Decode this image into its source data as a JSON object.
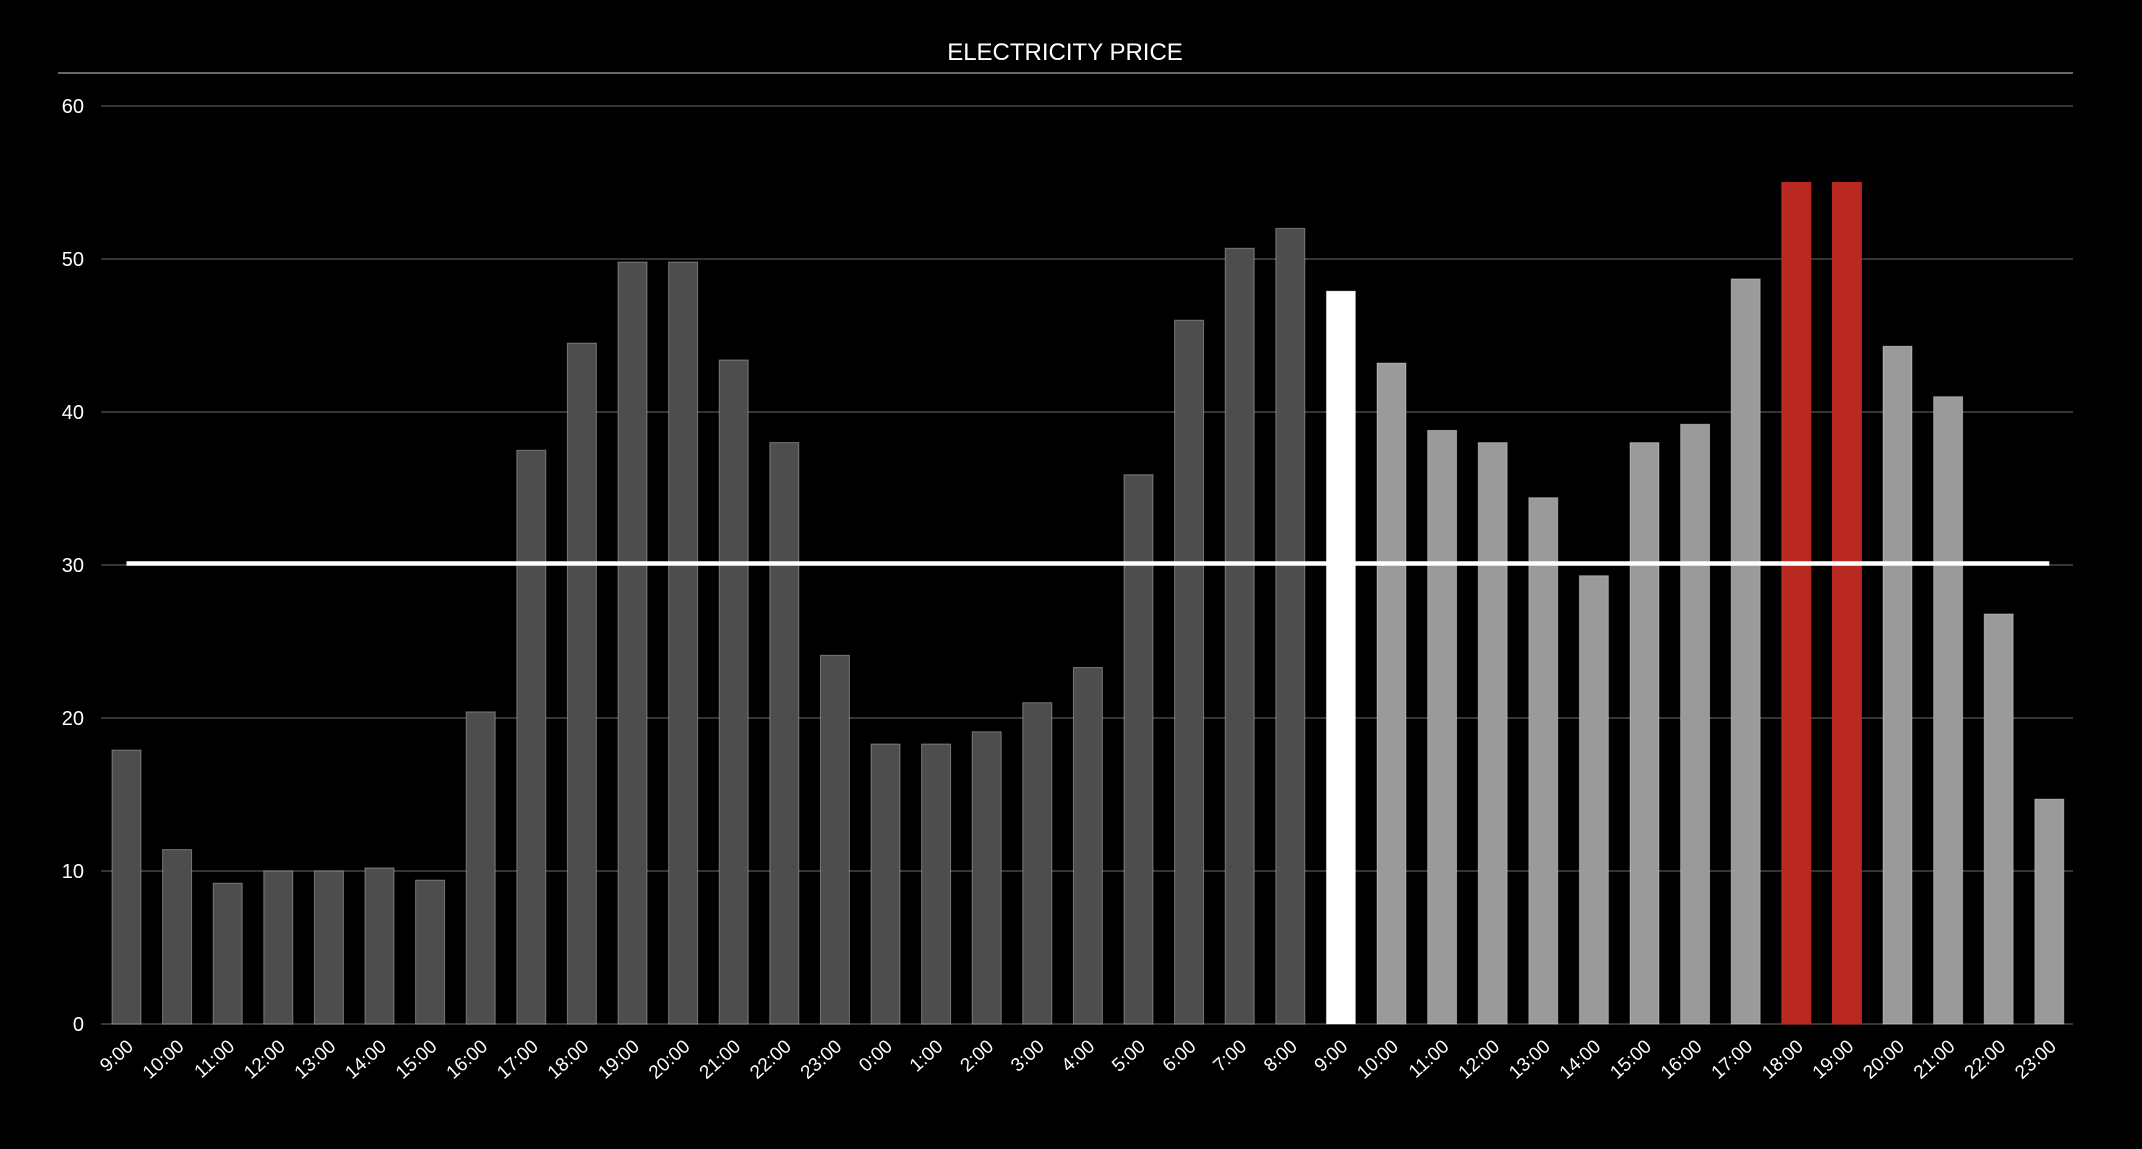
{
  "chart_data": {
    "type": "bar",
    "title": "ELECTRICITY PRICE",
    "xlabel": "",
    "ylabel": "",
    "ylim": [
      0,
      60
    ],
    "yticks": [
      0,
      10,
      20,
      30,
      40,
      50,
      60
    ],
    "grid": true,
    "reference_line": 30.1,
    "categories": [
      "9:00",
      "10:00",
      "11:00",
      "12:00",
      "13:00",
      "14:00",
      "15:00",
      "16:00",
      "17:00",
      "18:00",
      "19:00",
      "20:00",
      "21:00",
      "22:00",
      "23:00",
      "0:00",
      "1:00",
      "2:00",
      "3:00",
      "4:00",
      "5:00",
      "6:00",
      "7:00",
      "8:00",
      "9:00",
      "10:00",
      "11:00",
      "12:00",
      "13:00",
      "14:00",
      "15:00",
      "16:00",
      "17:00",
      "18:00",
      "19:00",
      "20:00",
      "21:00",
      "22:00",
      "23:00"
    ],
    "values": [
      17.9,
      11.4,
      9.2,
      10.0,
      10.0,
      10.2,
      9.4,
      20.4,
      37.5,
      44.5,
      49.8,
      49.8,
      43.4,
      38.0,
      24.1,
      18.3,
      18.3,
      19.1,
      21.0,
      23.3,
      35.9,
      46.0,
      50.7,
      52.0,
      47.9,
      43.2,
      38.8,
      38.0,
      34.4,
      29.3,
      38.0,
      39.2,
      48.7,
      55.0,
      55.0,
      44.3,
      41.0,
      26.8,
      14.7
    ],
    "bar_states": [
      "past",
      "past",
      "past",
      "past",
      "past",
      "past",
      "past",
      "past",
      "past",
      "past",
      "past",
      "past",
      "past",
      "past",
      "past",
      "past",
      "past",
      "past",
      "past",
      "past",
      "past",
      "past",
      "past",
      "past",
      "current",
      "future",
      "future",
      "future",
      "future",
      "future",
      "future",
      "future",
      "future",
      "peak",
      "peak",
      "future",
      "future",
      "future",
      "future"
    ],
    "colors": {
      "past": "#4d4d4d",
      "current": "#ffffff",
      "future": "#9a9a9a",
      "peak": "#b92921",
      "grid": "#555555",
      "text": "#ffffff",
      "background": "#000000"
    }
  }
}
